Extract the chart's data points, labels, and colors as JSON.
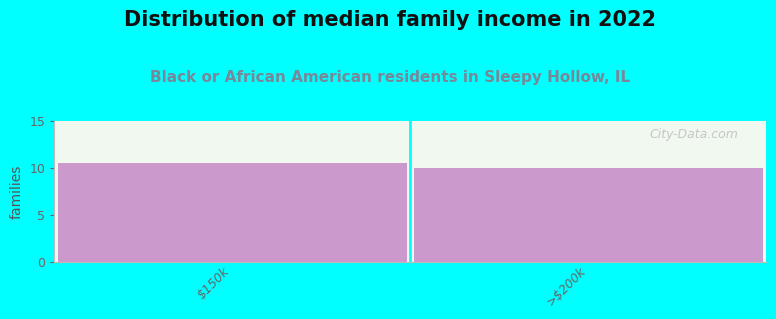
{
  "title": "Distribution of median family income in 2022",
  "subtitle": "Black or African American residents in Sleepy Hollow, IL",
  "categories": [
    "$150k",
    ">$200k"
  ],
  "values": [
    10.5,
    10.0
  ],
  "bar_color": "#cc99cc",
  "background_color": "#00ffff",
  "plot_bg_color": "#f0f8f0",
  "ylabel": "families",
  "ylim": [
    0,
    15
  ],
  "yticks": [
    0,
    5,
    10,
    15
  ],
  "title_fontsize": 15,
  "subtitle_fontsize": 11,
  "subtitle_color": "#778899",
  "title_color": "#111111",
  "watermark": "City-Data.com"
}
